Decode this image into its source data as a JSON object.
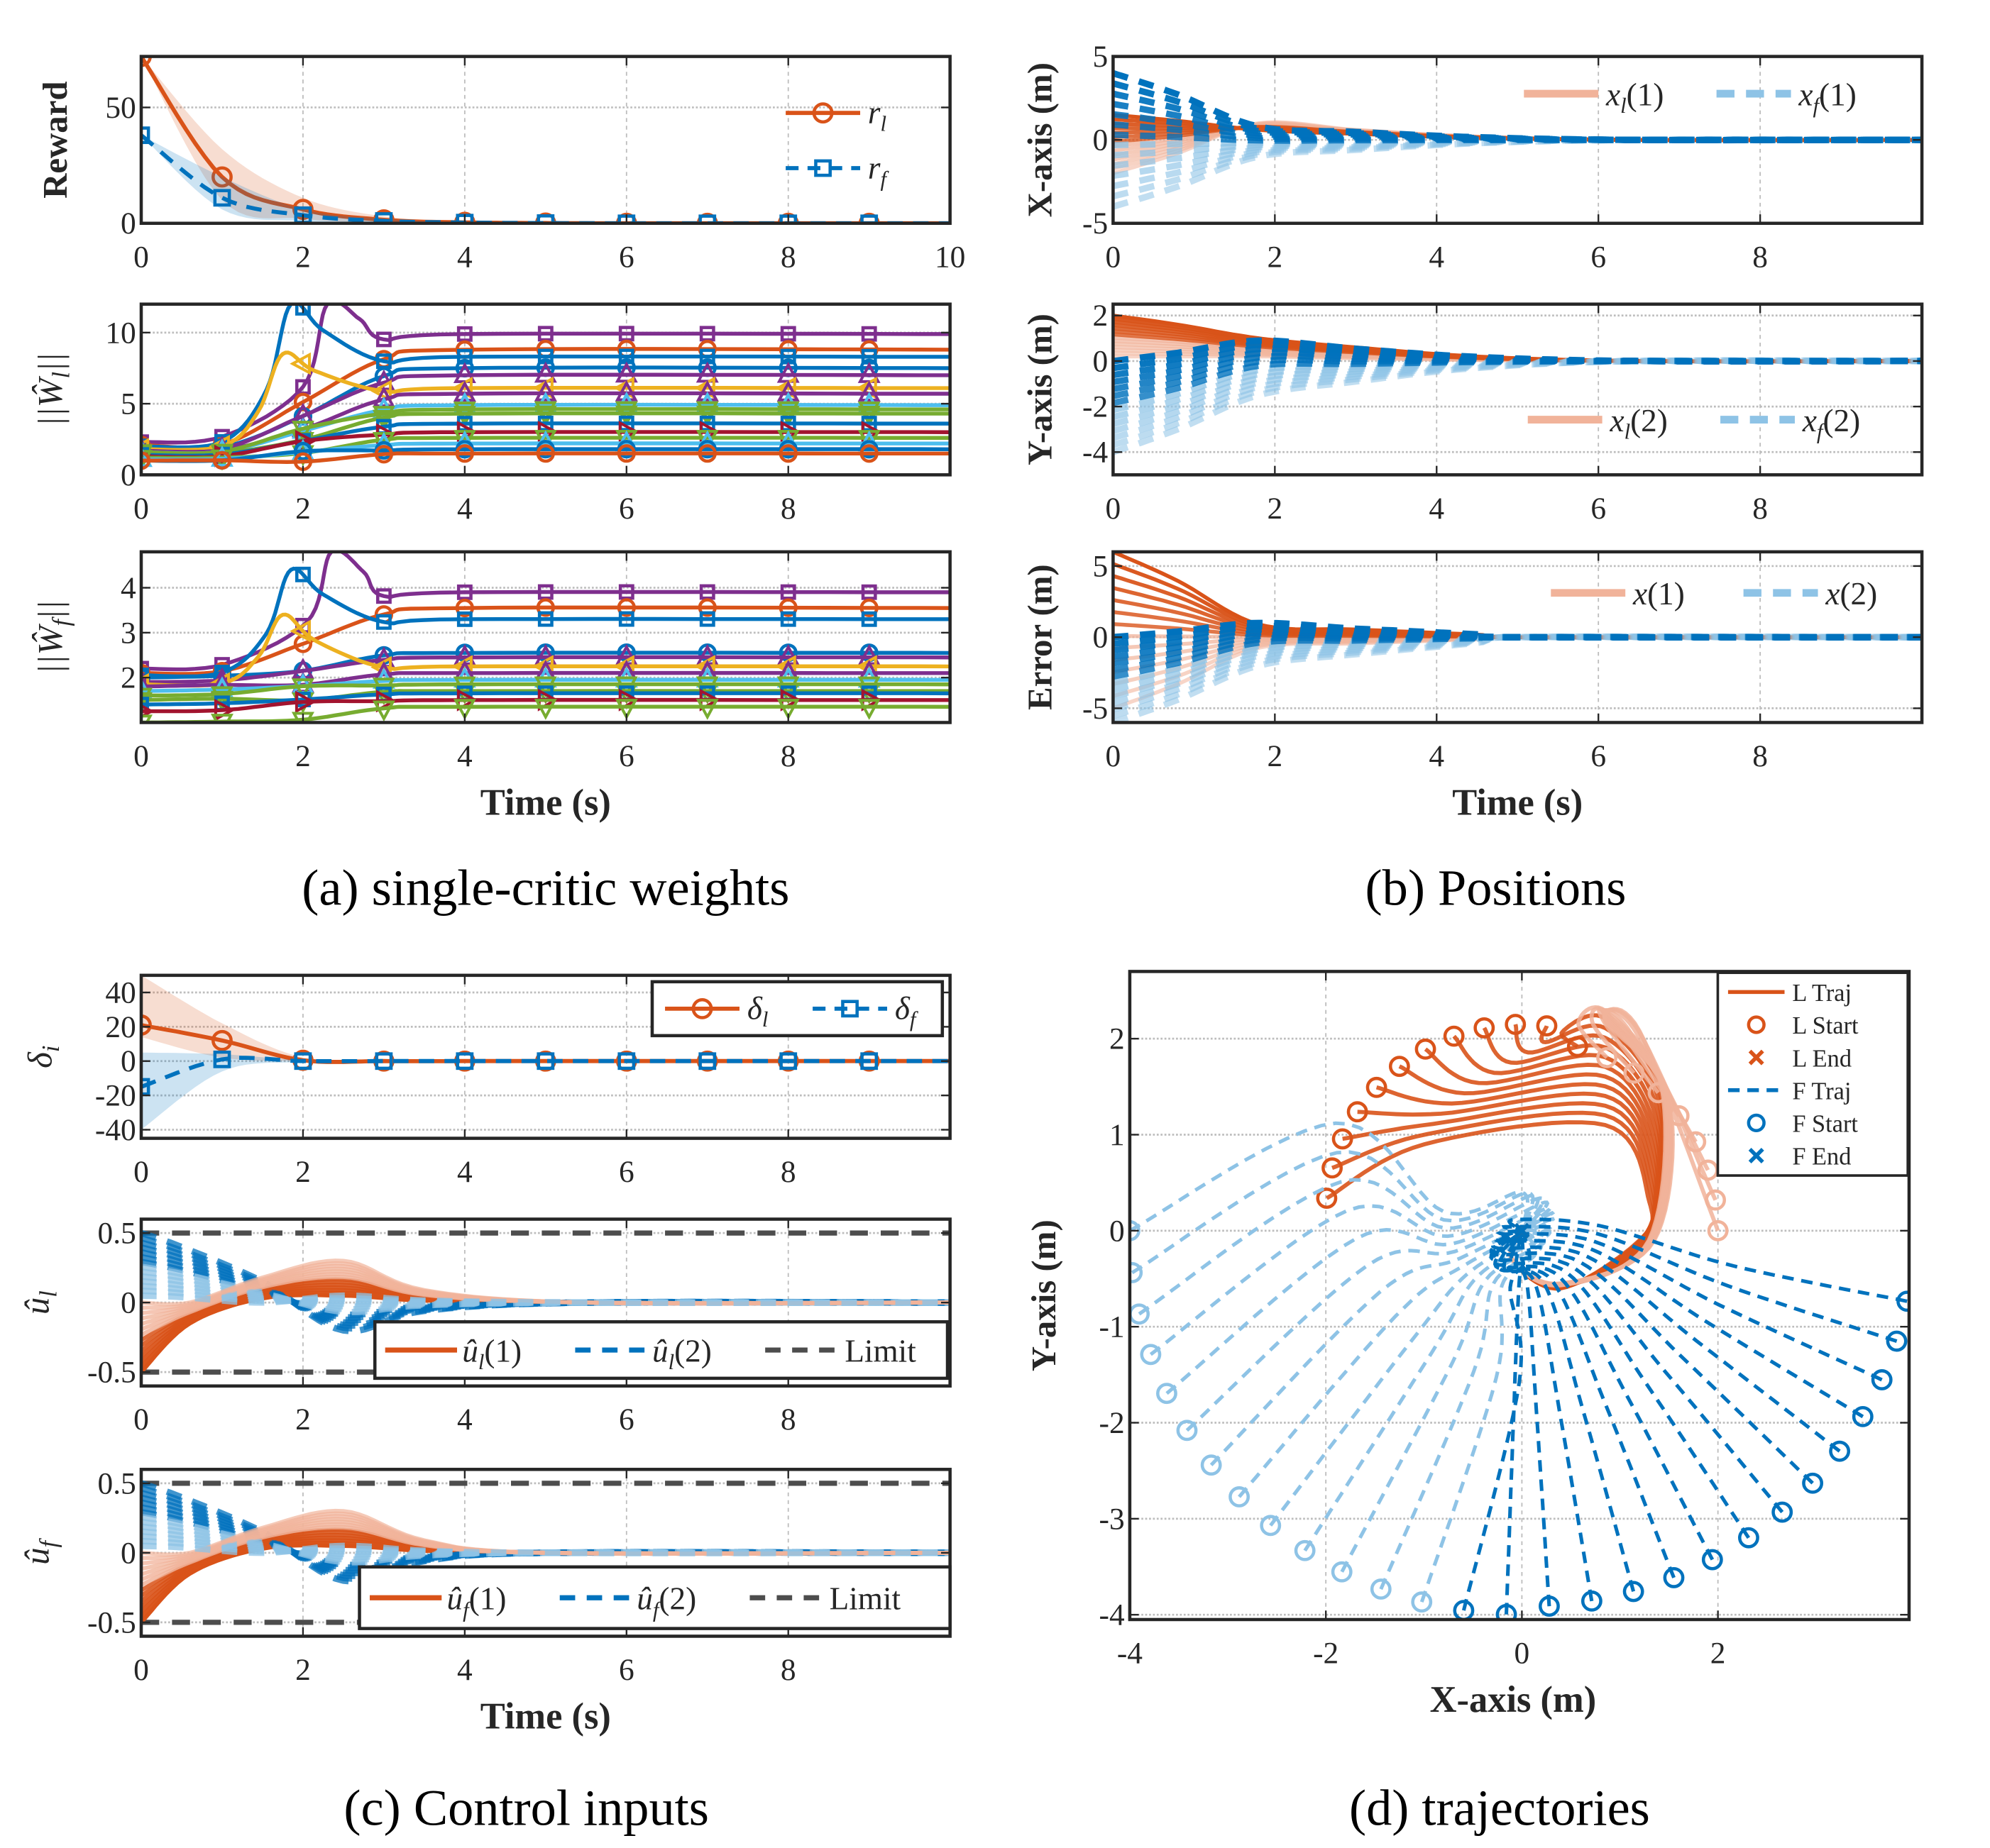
{
  "figure": {
    "captions": {
      "a": "(a) single-critic weights",
      "b": "(b) Positions",
      "c": "(c) Control inputs",
      "d": "(d) trajectories"
    },
    "colors": {
      "orange": "#D95319",
      "blue": "#0072BD",
      "light_orange": "#F1B39A",
      "light_blue": "#8EC3E6",
      "yellow": "#EDB120",
      "purple": "#7E2F8E",
      "green": "#77AC30",
      "cyan": "#4DBEEE",
      "darkred": "#A2142F",
      "limit_gray": "#4D4D4D"
    }
  },
  "chart_data": [
    {
      "id": "reward",
      "type": "line",
      "panel": "a",
      "ylabel": "Reward",
      "xlabel": "",
      "xlim": [
        0,
        10
      ],
      "ylim": [
        0,
        72
      ],
      "xticks": [
        0,
        2,
        4,
        6,
        8,
        10
      ],
      "yticks": [
        0,
        50
      ],
      "grid": true,
      "legend": {
        "placement": "right",
        "entries": [
          "r_l",
          "r_f"
        ],
        "labels": [
          "r",
          "r"
        ],
        "subs": [
          "l",
          "f"
        ]
      },
      "series": [
        {
          "name": "r_l",
          "style": "solid-circle",
          "color": "orange",
          "x": [
            0,
            1,
            2,
            3,
            4,
            5,
            6,
            7,
            8,
            9,
            10
          ],
          "y": [
            72,
            20,
            6,
            1.5,
            0.4,
            0.1,
            0,
            0,
            0,
            0,
            0
          ],
          "band_upper": [
            72,
            32,
            11,
            3,
            1,
            0.3,
            0,
            0,
            0,
            0,
            0
          ],
          "band_lower": [
            72,
            10,
            2,
            0.5,
            0,
            0,
            0,
            0,
            0,
            0,
            0
          ]
        },
        {
          "name": "r_f",
          "style": "dashed-square",
          "color": "blue",
          "x": [
            0,
            1,
            2,
            3,
            4,
            5,
            6,
            7,
            8,
            9,
            10
          ],
          "y": [
            38,
            11,
            3.5,
            1,
            0.3,
            0.1,
            0,
            0,
            0,
            0,
            0
          ],
          "band_upper": [
            38,
            20,
            6,
            2,
            0.5,
            0.1,
            0,
            0,
            0,
            0,
            0
          ],
          "band_lower": [
            38,
            6,
            1,
            0.2,
            0,
            0,
            0,
            0,
            0,
            0,
            0
          ]
        }
      ]
    },
    {
      "id": "wl",
      "type": "line",
      "panel": "a",
      "ylabel": "||Ŵ_l||",
      "ylabel_main": "||Ŵ",
      "ylabel_sub": "l",
      "xlabel": "",
      "xlim": [
        0,
        10
      ],
      "ylim": [
        0,
        12
      ],
      "xticks": [
        0,
        2,
        4,
        6,
        8
      ],
      "yticks": [
        0,
        5,
        10
      ],
      "grid": true,
      "final_values": [
        9.9,
        8.8,
        8.3,
        7.5,
        7.0,
        6.1,
        5.7,
        4.9,
        4.6,
        4.3,
        3.6,
        3.0,
        2.6,
        2.2,
        1.8,
        1.5
      ],
      "initial_values": [
        2.3,
        2.1,
        2.0,
        1.9,
        1.8,
        1.8,
        1.7,
        1.6,
        1.6,
        1.5,
        1.4,
        1.3,
        1.2,
        1.1,
        1.0,
        1.0
      ],
      "peaks": [
        {
          "t": 1.85,
          "v": 12,
          "color": "blue"
        },
        {
          "t": 2.3,
          "v": 12,
          "color": "purple"
        },
        {
          "t": 1.75,
          "v": 8.5,
          "color": "yellow"
        },
        {
          "t": 1.7,
          "v": 6.3,
          "color": "darkred"
        }
      ]
    },
    {
      "id": "wf",
      "type": "line",
      "panel": "a",
      "ylabel": "||Ŵ_f||",
      "ylabel_main": "||Ŵ",
      "ylabel_sub": "f",
      "xlabel": "Time (s)",
      "xlim": [
        0,
        10
      ],
      "ylim": [
        1,
        4.8
      ],
      "xticks": [
        0,
        2,
        4,
        6,
        8
      ],
      "yticks": [
        2,
        3,
        4
      ],
      "grid": true,
      "final_values": [
        3.9,
        3.55,
        3.3,
        2.55,
        2.45,
        2.25,
        2.1,
        1.95,
        1.85,
        1.7,
        1.65,
        1.5,
        1.35
      ],
      "initial_values": [
        2.2,
        2.1,
        2.05,
        2.0,
        1.9,
        1.85,
        1.8,
        1.7,
        1.6,
        1.5,
        1.4,
        1.25,
        1.0
      ],
      "peaks": [
        {
          "t": 1.85,
          "v": 4.4,
          "color": "blue"
        },
        {
          "t": 2.35,
          "v": 4.8,
          "color": "purple"
        },
        {
          "t": 1.75,
          "v": 3.4,
          "color": "yellow"
        },
        {
          "t": 1.7,
          "v": 2.7,
          "color": "darkred"
        }
      ]
    },
    {
      "id": "xpos",
      "type": "line",
      "panel": "b",
      "ylabel": "X-axis (m)",
      "xlabel": "",
      "xlim": [
        0,
        10
      ],
      "ylim": [
        -5,
        5
      ],
      "xticks": [
        0,
        2,
        4,
        6,
        8
      ],
      "yticks": [
        -5,
        0,
        5
      ],
      "grid": true,
      "legend": {
        "placement": "top-right",
        "entries": [
          "x_l(1)",
          "x_f(1)"
        ],
        "labels": [
          "x",
          "x"
        ],
        "subs": [
          "l",
          "f"
        ],
        "args": [
          "(1)",
          "(1)"
        ]
      },
      "leader_range_t0": [
        -2,
        1.5
      ],
      "follower_range_t0": [
        -4,
        4
      ],
      "settle_time": 6.5
    },
    {
      "id": "ypos",
      "type": "line",
      "panel": "b",
      "ylabel": "Y-axis (m)",
      "xlabel": "",
      "xlim": [
        0,
        10
      ],
      "ylim": [
        -5,
        2.5
      ],
      "xticks": [
        0,
        2,
        4,
        6,
        8
      ],
      "yticks": [
        -4,
        -2,
        0,
        2
      ],
      "grid": true,
      "legend": {
        "placement": "bottom-right",
        "entries": [
          "x_l(2)",
          "x_f(2)"
        ],
        "labels": [
          "x",
          "x"
        ],
        "subs": [
          "l",
          "f"
        ],
        "args": [
          "(2)",
          "(2)"
        ]
      },
      "leader_range_t0": [
        0.2,
        2
      ],
      "follower_range_t0": [
        -4,
        0
      ],
      "settle_time": 6.5
    },
    {
      "id": "err",
      "type": "line",
      "panel": "b",
      "ylabel": "Error (m)",
      "xlabel": "Time (s)",
      "xlim": [
        0,
        10
      ],
      "ylim": [
        -6,
        6
      ],
      "xticks": [
        0,
        2,
        4,
        6,
        8
      ],
      "yticks": [
        -5,
        0,
        5
      ],
      "grid": true,
      "legend": {
        "placement": "top-right",
        "entries": [
          "x(1)",
          "x(2)"
        ],
        "labels": [
          "x",
          "x"
        ],
        "subs": [
          "",
          ""
        ],
        "args": [
          "(1)",
          "(2)"
        ]
      },
      "x1_range_t0": [
        -5,
        6
      ],
      "x2_range_t0": [
        -6,
        0
      ],
      "settle_time": 5
    },
    {
      "id": "delta",
      "type": "line",
      "panel": "c",
      "ylabel": "δ_i",
      "ylabel_main": "δ",
      "ylabel_sub": "i",
      "xlabel": "",
      "xlim": [
        0,
        10
      ],
      "ylim": [
        -45,
        50
      ],
      "xticks": [
        0,
        2,
        4,
        6,
        8
      ],
      "yticks": [
        -40,
        -20,
        0,
        20,
        40
      ],
      "grid": true,
      "legend": {
        "placement": "top-right",
        "entries": [
          "δ_l",
          "δ_f"
        ],
        "labels": [
          "δ",
          "δ"
        ],
        "subs": [
          "l",
          "f"
        ]
      },
      "series": [
        {
          "name": "δ_l",
          "style": "solid-circle",
          "color": "orange",
          "x": [
            0,
            1,
            2,
            3,
            4,
            5,
            6,
            7,
            8,
            9,
            10
          ],
          "y": [
            21,
            12,
            0.5,
            0,
            0,
            0,
            0,
            0,
            0,
            0,
            0
          ],
          "band_upper": [
            50,
            22,
            2,
            0,
            0,
            0,
            0,
            0,
            0,
            0,
            0
          ],
          "band_lower": [
            14,
            2,
            0,
            0,
            0,
            0,
            0,
            0,
            0,
            0,
            0
          ]
        },
        {
          "name": "δ_f",
          "style": "dashed-square",
          "color": "blue",
          "x": [
            0,
            1,
            2,
            3,
            4,
            5,
            6,
            7,
            8,
            9,
            10
          ],
          "y": [
            -15,
            1,
            0,
            0,
            0,
            0,
            0,
            0,
            0,
            0,
            0
          ],
          "band_upper": [
            5,
            4,
            0.5,
            0,
            0,
            0,
            0,
            0,
            0,
            0,
            0
          ],
          "band_lower": [
            -40,
            -6,
            -0.5,
            0,
            0,
            0,
            0,
            0,
            0,
            0,
            0
          ]
        }
      ]
    },
    {
      "id": "ul",
      "type": "line",
      "panel": "c",
      "ylabel": "û_l",
      "ylabel_main": "û",
      "ylabel_sub": "l",
      "xlabel": "",
      "xlim": [
        0,
        10
      ],
      "ylim": [
        -0.6,
        0.6
      ],
      "xticks": [
        0,
        2,
        4,
        6,
        8
      ],
      "yticks": [
        -0.5,
        0,
        0.5
      ],
      "ytick_labels": [
        "-0.5",
        "0",
        "0.5"
      ],
      "grid": true,
      "limits": [
        -0.5,
        0.5
      ],
      "legend": {
        "placement": "bottom-right",
        "entries": [
          "û_l(1)",
          "û_l(2)",
          "Limit"
        ],
        "labels": [
          "û",
          "û",
          "Limit"
        ],
        "subs": [
          "l",
          "l",
          ""
        ],
        "args": [
          "(1)",
          "(2)",
          ""
        ]
      },
      "settle_time": 5.5
    },
    {
      "id": "uf",
      "type": "line",
      "panel": "c",
      "ylabel": "û_f",
      "ylabel_main": "û",
      "ylabel_sub": "f",
      "xlabel": "Time (s)",
      "xlim": [
        0,
        10
      ],
      "ylim": [
        -0.6,
        0.6
      ],
      "xticks": [
        0,
        2,
        4,
        6,
        8
      ],
      "yticks": [
        -0.5,
        0,
        0.5
      ],
      "ytick_labels": [
        "-0.5",
        "0",
        "0.5"
      ],
      "grid": true,
      "limits": [
        -0.5,
        0.5
      ],
      "legend": {
        "placement": "bottom-right",
        "entries": [
          "û_f(1)",
          "û_f(2)",
          "Limit"
        ],
        "labels": [
          "û",
          "û",
          "Limit"
        ],
        "subs": [
          "f",
          "f",
          ""
        ],
        "args": [
          "(1)",
          "(2)",
          ""
        ]
      },
      "settle_time": 5
    },
    {
      "id": "traj",
      "type": "line",
      "panel": "d",
      "ylabel": "Y-axis (m)",
      "xlabel": "X-axis (m)",
      "xlim": [
        -4,
        3.95
      ],
      "ylim": [
        -4.05,
        2.7
      ],
      "xticks": [
        -4,
        -2,
        0,
        2
      ],
      "yticks": [
        -4,
        -3,
        -2,
        -1,
        0,
        1,
        2
      ],
      "grid": true,
      "legend": {
        "placement": "top-right",
        "entries": [
          "L Traj",
          "L Start",
          "L End",
          "F Traj",
          "F Start",
          "F End"
        ]
      },
      "leader_starts": {
        "description": "arc of radius 2 from (-2,0.2) over top to (2,0)",
        "count": 20
      },
      "follower_starts": {
        "description": "arc of radius 4 from (-4,0) down to (3.95,-0.4)",
        "count": 28
      },
      "end_point": [
        0,
        0
      ]
    }
  ]
}
